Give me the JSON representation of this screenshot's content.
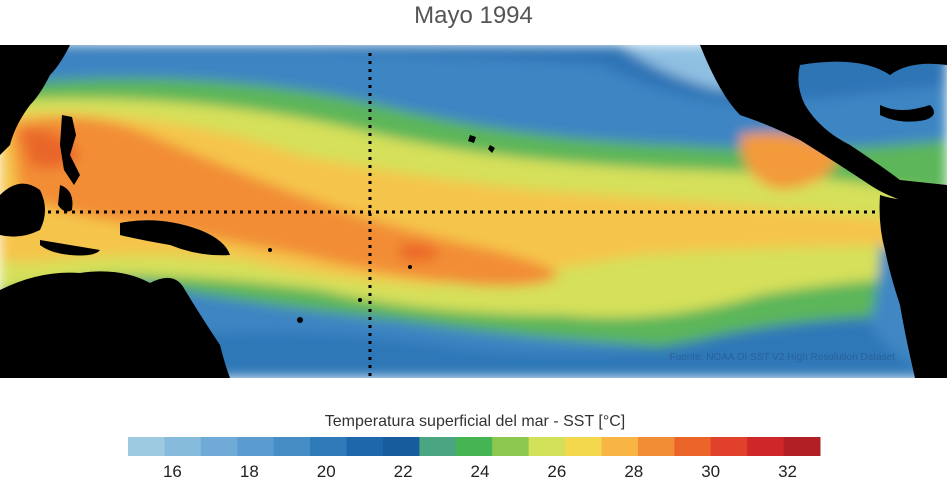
{
  "title": "Mayo 1994",
  "source_note": "Fuente: NOAA OI SST V2 High Resolution Dataset",
  "colorbar": {
    "label": "Temperatura superficial del mar - SST  [°C]",
    "min": 15,
    "max": 33,
    "colors": [
      "#9ecae1",
      "#86bbdc",
      "#6fabd6",
      "#5a9cd0",
      "#468dc6",
      "#2f7ab9",
      "#1f67ab",
      "#175c9c",
      "#4aa582",
      "#45b453",
      "#8cc850",
      "#d3e05a",
      "#f3d84e",
      "#f8b543",
      "#f28d35",
      "#eb6528",
      "#e1402a",
      "#cf2628",
      "#b22025"
    ],
    "ticks": [
      "16",
      "18",
      "20",
      "22",
      "24",
      "26",
      "28",
      "30",
      "32"
    ]
  }
}
